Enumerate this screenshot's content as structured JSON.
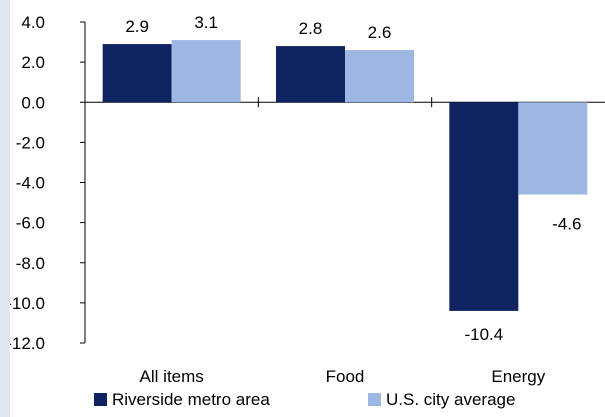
{
  "chart_data": {
    "type": "bar",
    "categories": [
      "All items",
      "Food",
      "Energy"
    ],
    "series": [
      {
        "name": "Riverside metro area",
        "values": [
          2.9,
          2.8,
          -10.4
        ],
        "color": "#0f2363"
      },
      {
        "name": "U.S. city average",
        "values": [
          3.1,
          2.6,
          -4.6
        ],
        "color": "#9db7e3"
      }
    ],
    "data_labels": [
      [
        "2.9",
        "2.8",
        "-10.4"
      ],
      [
        "3.1",
        "2.6",
        "-4.6"
      ]
    ],
    "yticks": [
      "4.0",
      "2.0",
      "0.0",
      "-2.0",
      "-4.0",
      "-6.0",
      "-8.0",
      "-10.0",
      "-12.0"
    ],
    "ylim": [
      -12,
      4
    ],
    "grid": false,
    "legend_position": "bottom",
    "background_color": "#ffffff",
    "frame_color": "#dfe6f2"
  }
}
